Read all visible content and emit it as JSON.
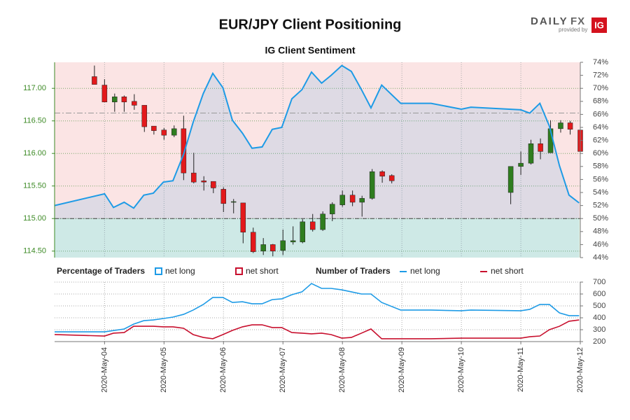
{
  "title": "EUR/JPY Client Positioning",
  "logo": {
    "daily": "DAILY",
    "fx": "FX",
    "provided": "provided by",
    "ig": "IG"
  },
  "chart_data": [
    {
      "type": "candlestick",
      "subtitle": "IG Client Sentiment",
      "x": [
        3.83,
        4,
        4.17,
        4.33,
        4.5,
        4.67,
        4.83,
        5,
        5.17,
        5.33,
        5.5,
        5.67,
        5.83,
        6,
        6.17,
        6.33,
        6.5,
        6.67,
        6.83,
        7,
        7.17,
        7.33,
        7.5,
        7.67,
        7.83,
        8,
        8.17,
        8.33,
        8.5,
        8.67,
        8.83,
        10.83,
        11,
        11.17,
        11.33,
        11.5,
        11.67,
        11.83,
        12
      ],
      "open": [
        117.18,
        117.05,
        116.79,
        116.87,
        116.8,
        116.74,
        116.42,
        116.36,
        116.28,
        116.38,
        115.7,
        115.58,
        115.57,
        115.45,
        115.25,
        115.24,
        114.79,
        114.5,
        114.6,
        114.51,
        114.64,
        114.64,
        114.95,
        114.83,
        115.07,
        115.21,
        115.36,
        115.25,
        115.31,
        115.72,
        115.66,
        115.4,
        115.8,
        115.85,
        116.15,
        116.01,
        116.38,
        116.47,
        116.36
      ],
      "high": [
        117.35,
        117.14,
        116.92,
        116.89,
        116.91,
        116.74,
        116.42,
        116.39,
        116.43,
        116.58,
        116.01,
        115.65,
        115.57,
        115.48,
        115.3,
        115.24,
        114.86,
        114.7,
        114.61,
        114.83,
        114.88,
        114.99,
        115.07,
        115.11,
        115.25,
        115.43,
        115.43,
        115.35,
        115.76,
        115.74,
        115.68,
        115.8,
        116.03,
        116.21,
        116.23,
        116.51,
        116.51,
        116.5,
        116.38
      ],
      "low": [
        117.06,
        116.79,
        116.64,
        116.64,
        116.67,
        116.33,
        116.29,
        116.21,
        116.25,
        115.59,
        115.54,
        115.43,
        115.39,
        115.1,
        115.08,
        114.62,
        114.47,
        114.44,
        114.42,
        114.44,
        114.6,
        114.62,
        114.8,
        114.81,
        114.96,
        115.18,
        115.19,
        115.03,
        115.29,
        115.55,
        115.54,
        115.22,
        115.67,
        115.83,
        115.91,
        116.01,
        116.32,
        116.29,
        116.03
      ],
      "close": [
        117.06,
        116.79,
        116.87,
        116.79,
        116.74,
        116.41,
        116.35,
        116.28,
        116.38,
        115.7,
        115.56,
        115.56,
        115.47,
        115.23,
        115.26,
        114.79,
        114.49,
        114.6,
        114.5,
        114.66,
        114.66,
        114.95,
        114.83,
        115.07,
        115.22,
        115.36,
        115.25,
        115.31,
        115.72,
        115.65,
        115.58,
        115.8,
        115.85,
        116.15,
        116.03,
        116.38,
        116.47,
        116.37,
        116.03
      ],
      "up_color": "#2f7d1f",
      "down_color": "#e3191b",
      "series": [
        {
          "name": "net long",
          "color": "#1e9be6",
          "axis": "y2",
          "x": [
            3.16,
            4,
            4.15,
            4.33,
            4.49,
            4.66,
            4.82,
            4.99,
            5.15,
            5.33,
            5.49,
            5.66,
            5.82,
            5.99,
            6.15,
            6.32,
            6.48,
            6.65,
            6.82,
            6.98,
            7.15,
            7.32,
            7.48,
            7.65,
            7.81,
            7.99,
            8.15,
            8.32,
            8.48,
            8.66,
            8.98,
            9.49,
            10,
            10.16,
            11,
            11.15,
            11.32,
            11.48,
            11.65,
            11.81,
            11.98
          ],
          "values": [
            52.0,
            53.8,
            51.7,
            52.5,
            51.6,
            53.6,
            53.9,
            55.6,
            55.8,
            59.9,
            64.8,
            69.2,
            72.3,
            70.1,
            65.1,
            63.1,
            60.8,
            61.0,
            63.7,
            64.0,
            68.4,
            69.8,
            72.5,
            70.8,
            72.0,
            73.5,
            72.6,
            69.8,
            67.0,
            70.5,
            67.7,
            67.7,
            66.8,
            67.1,
            66.7,
            66.2,
            67.7,
            64.2,
            58.1,
            53.6,
            52.4
          ]
        }
      ],
      "zone_split": 50,
      "zone_colors": {
        "above": "#fbe4e4",
        "below": "#e9f5e6"
      },
      "reference_lines": [
        50,
        66.2
      ],
      "xlim": [
        3.16,
        12
      ],
      "xticks": [
        {
          "value": 4,
          "label": "2020-May-04"
        },
        {
          "value": 5,
          "label": "2020-May-05"
        },
        {
          "value": 6,
          "label": "2020-May-06"
        },
        {
          "value": 7,
          "label": "2020-May-07"
        },
        {
          "value": 8,
          "label": "2020-May-08"
        },
        {
          "value": 9,
          "label": "2020-May-09"
        },
        {
          "value": 10,
          "label": "2020-May-10"
        },
        {
          "value": 11,
          "label": "2020-May-11"
        },
        {
          "value": 12,
          "label": "2020-May-12"
        }
      ],
      "ylim": [
        114.4,
        117.4
      ],
      "yticks": [
        {
          "value": 114.5,
          "label": "114.50"
        },
        {
          "value": 115,
          "label": "115.00"
        },
        {
          "value": 115.5,
          "label": "115.50"
        },
        {
          "value": 116,
          "label": "116.00"
        },
        {
          "value": 116.5,
          "label": "116.50"
        },
        {
          "value": 117,
          "label": "117.00"
        }
      ],
      "y2lim": [
        44,
        74
      ],
      "y2ticks": [
        {
          "value": 44,
          "label": "44%"
        },
        {
          "value": 46,
          "label": "46%"
        },
        {
          "value": 48,
          "label": "48%"
        },
        {
          "value": 50,
          "label": "50%"
        },
        {
          "value": 52,
          "label": "52%"
        },
        {
          "value": 54,
          "label": "54%"
        },
        {
          "value": 56,
          "label": "56%"
        },
        {
          "value": 58,
          "label": "58%"
        },
        {
          "value": 60,
          "label": "60%"
        },
        {
          "value": 62,
          "label": "62%"
        },
        {
          "value": 64,
          "label": "64%"
        },
        {
          "value": 66,
          "label": "66%"
        },
        {
          "value": 68,
          "label": "68%"
        },
        {
          "value": 70,
          "label": "70%"
        },
        {
          "value": 72,
          "label": "72%"
        },
        {
          "value": 74,
          "label": "74%"
        }
      ],
      "grid": true
    },
    {
      "type": "line",
      "legend": {
        "percentage_title": "Percentage of Traders",
        "number_title": "Number of Traders",
        "percentage_items": [
          {
            "name": "net long",
            "color": "#1e9be6"
          },
          {
            "name": "net short",
            "color": "#c8102e"
          }
        ]
      },
      "series": [
        {
          "name": "net long",
          "color": "#1e9be6",
          "x": [
            3.16,
            4,
            4.33,
            4.49,
            4.66,
            4.82,
            4.99,
            5.15,
            5.33,
            5.49,
            5.66,
            5.82,
            5.99,
            6.15,
            6.32,
            6.48,
            6.65,
            6.82,
            6.98,
            7.15,
            7.32,
            7.48,
            7.65,
            7.81,
            7.99,
            8.15,
            8.32,
            8.48,
            8.66,
            8.98,
            9.49,
            10,
            10.16,
            11,
            11.15,
            11.32,
            11.48,
            11.65,
            11.81,
            11.98
          ],
          "values": [
            282,
            282,
            306,
            347,
            376,
            382,
            394,
            406,
            429,
            465,
            512,
            571,
            571,
            529,
            535,
            518,
            518,
            553,
            559,
            594,
            618,
            688,
            647,
            647,
            635,
            618,
            600,
            600,
            529,
            465,
            465,
            459,
            465,
            459,
            471,
            512,
            512,
            441,
            418,
            418
          ]
        },
        {
          "name": "net short",
          "color": "#c8102e",
          "x": [
            3.16,
            4,
            4.15,
            4.33,
            4.49,
            4.66,
            4.82,
            4.99,
            5.15,
            5.33,
            5.49,
            5.66,
            5.82,
            5.99,
            6.15,
            6.32,
            6.48,
            6.65,
            6.82,
            6.98,
            7.15,
            7.32,
            7.48,
            7.65,
            7.81,
            7.99,
            8.15,
            8.32,
            8.48,
            8.66,
            8.98,
            9.49,
            10,
            11,
            11.15,
            11.32,
            11.48,
            11.65,
            11.81,
            11.98
          ],
          "values": [
            259,
            247,
            271,
            276,
            329,
            329,
            329,
            324,
            324,
            312,
            259,
            235,
            224,
            259,
            294,
            324,
            341,
            341,
            318,
            318,
            276,
            271,
            265,
            271,
            259,
            229,
            235,
            271,
            306,
            224,
            224,
            224,
            229,
            229,
            241,
            247,
            300,
            329,
            371,
            382
          ]
        }
      ],
      "xlim": [
        3.16,
        12
      ],
      "ylim": [
        200,
        700
      ],
      "yticks": [
        200,
        300,
        400,
        500,
        600,
        700
      ],
      "grid": true
    }
  ]
}
